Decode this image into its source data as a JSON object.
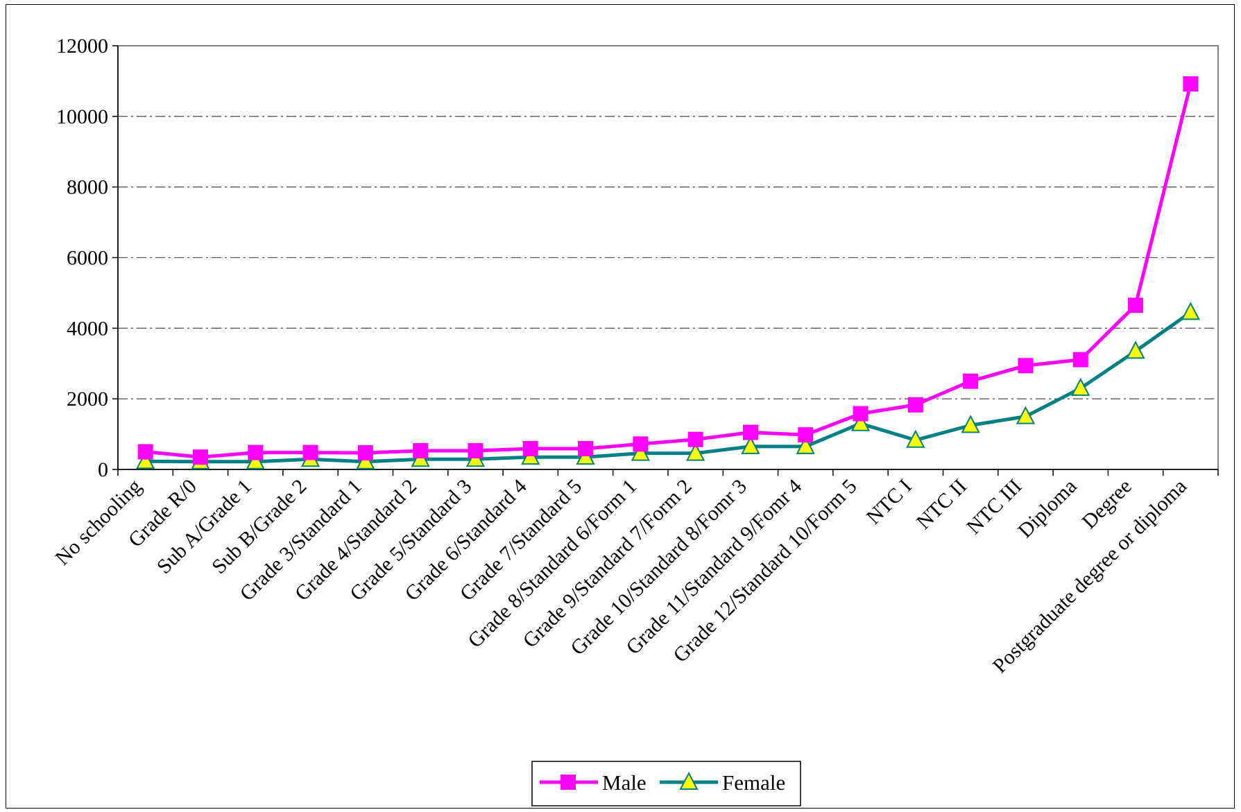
{
  "chart_data": {
    "type": "line",
    "title": "",
    "xlabel": "",
    "ylabel": "",
    "ylim": [
      0,
      12000
    ],
    "yticks": [
      "0",
      "2000",
      "4000",
      "6000",
      "8000",
      "10000",
      "12000"
    ],
    "grid": "horizontal dash-dot",
    "legend_position": "bottom",
    "categories": [
      "No schooling",
      "Grade R/0",
      "Sub A/Grade 1",
      "Sub B/Grade 2",
      "Grade 3/Standard 1",
      "Grade 4/Standard 2",
      "Grade 5/Standard 3",
      "Grade 6/Standard 4",
      "Grade 7/Standard 5",
      "Grade 8/Standard 6/Form 1",
      "Grade 9/Standard 7/Form 2",
      "Grade 10/Standard 8/Fomr 3",
      "Grade 11/Standard 9/Fomr 4",
      "Grade 12/Standard 10/Form 5",
      "NTC I",
      "NTC II",
      "NTC III",
      "Diploma",
      "Degree",
      "Postgraduate degree or diploma"
    ],
    "series": [
      {
        "name": "Male",
        "color": "#ff00ff",
        "marker": "square",
        "values": [
          500,
          350,
          480,
          480,
          470,
          530,
          530,
          590,
          590,
          720,
          850,
          1050,
          980,
          1580,
          1830,
          2500,
          2940,
          3110,
          4650,
          10920
        ]
      },
      {
        "name": "Female",
        "color": "#008080",
        "marker_fill": "#ffff00",
        "marker": "triangle",
        "values": [
          230,
          220,
          220,
          290,
          220,
          290,
          290,
          350,
          350,
          460,
          460,
          650,
          650,
          1300,
          830,
          1250,
          1500,
          2300,
          3350,
          4450
        ]
      }
    ]
  }
}
